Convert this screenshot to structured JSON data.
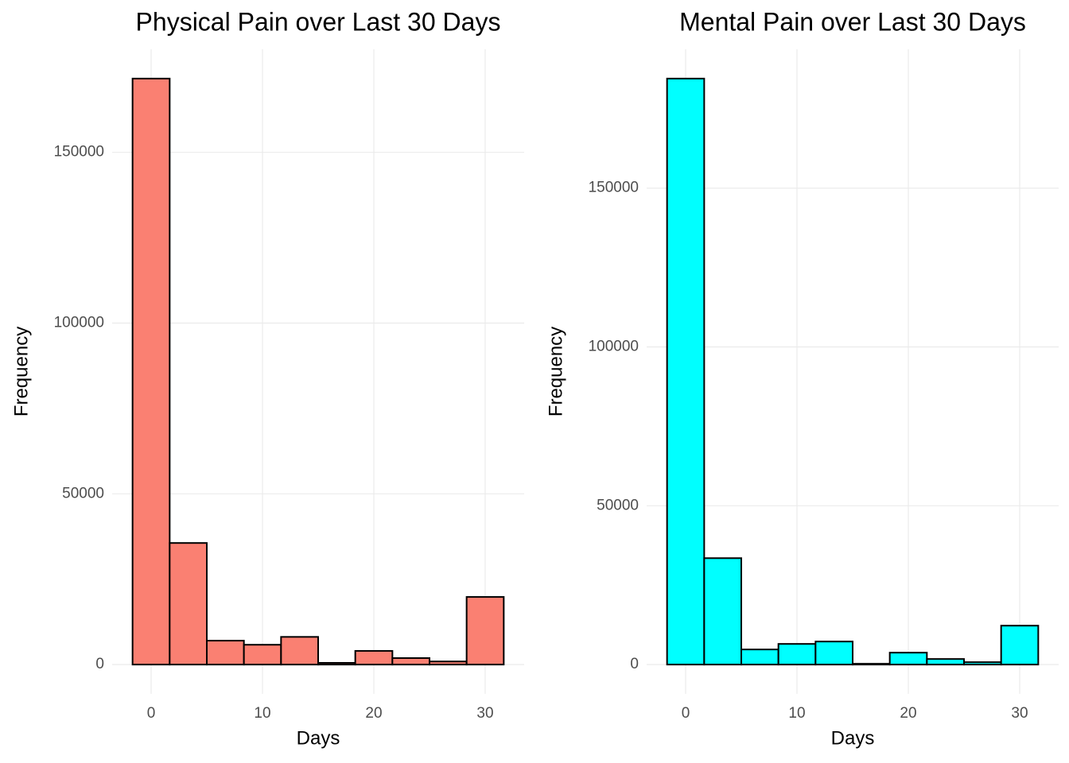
{
  "chart_data": [
    {
      "type": "histogram",
      "title": "Physical Pain over Last 30 Days",
      "x_label": "Days",
      "y_label": "Frequency",
      "bins": [
        -1.667,
        1.667,
        5,
        8.333,
        11.667,
        15,
        18.333,
        21.667,
        25,
        28.333,
        31.667
      ],
      "values": [
        171600,
        35600,
        7000,
        5800,
        8100,
        500,
        4000,
        1900,
        900,
        19800
      ],
      "color": "#fa8072",
      "edge_color": "#000000",
      "xlim": [
        -3.5,
        33.5
      ],
      "xticks": [
        0,
        10,
        20,
        30
      ],
      "ylim": [
        -8580,
        180180
      ],
      "yticks": [
        0,
        50000,
        100000,
        150000
      ],
      "grid": true
    },
    {
      "type": "histogram",
      "title": "Mental Pain over Last 30 Days",
      "x_label": "Days",
      "y_label": "Frequency",
      "bins": [
        -1.667,
        1.667,
        5,
        8.333,
        11.667,
        15,
        18.333,
        21.667,
        25,
        28.333,
        31.667
      ],
      "values": [
        184500,
        33500,
        4750,
        6500,
        7250,
        250,
        3750,
        1750,
        750,
        12250
      ],
      "color": "#00ffff",
      "edge_color": "#000000",
      "xlim": [
        -3.5,
        33.5
      ],
      "xticks": [
        0,
        10,
        20,
        30
      ],
      "ylim": [
        -9225,
        193725
      ],
      "yticks": [
        0,
        50000,
        100000,
        150000
      ],
      "grid": true
    }
  ]
}
